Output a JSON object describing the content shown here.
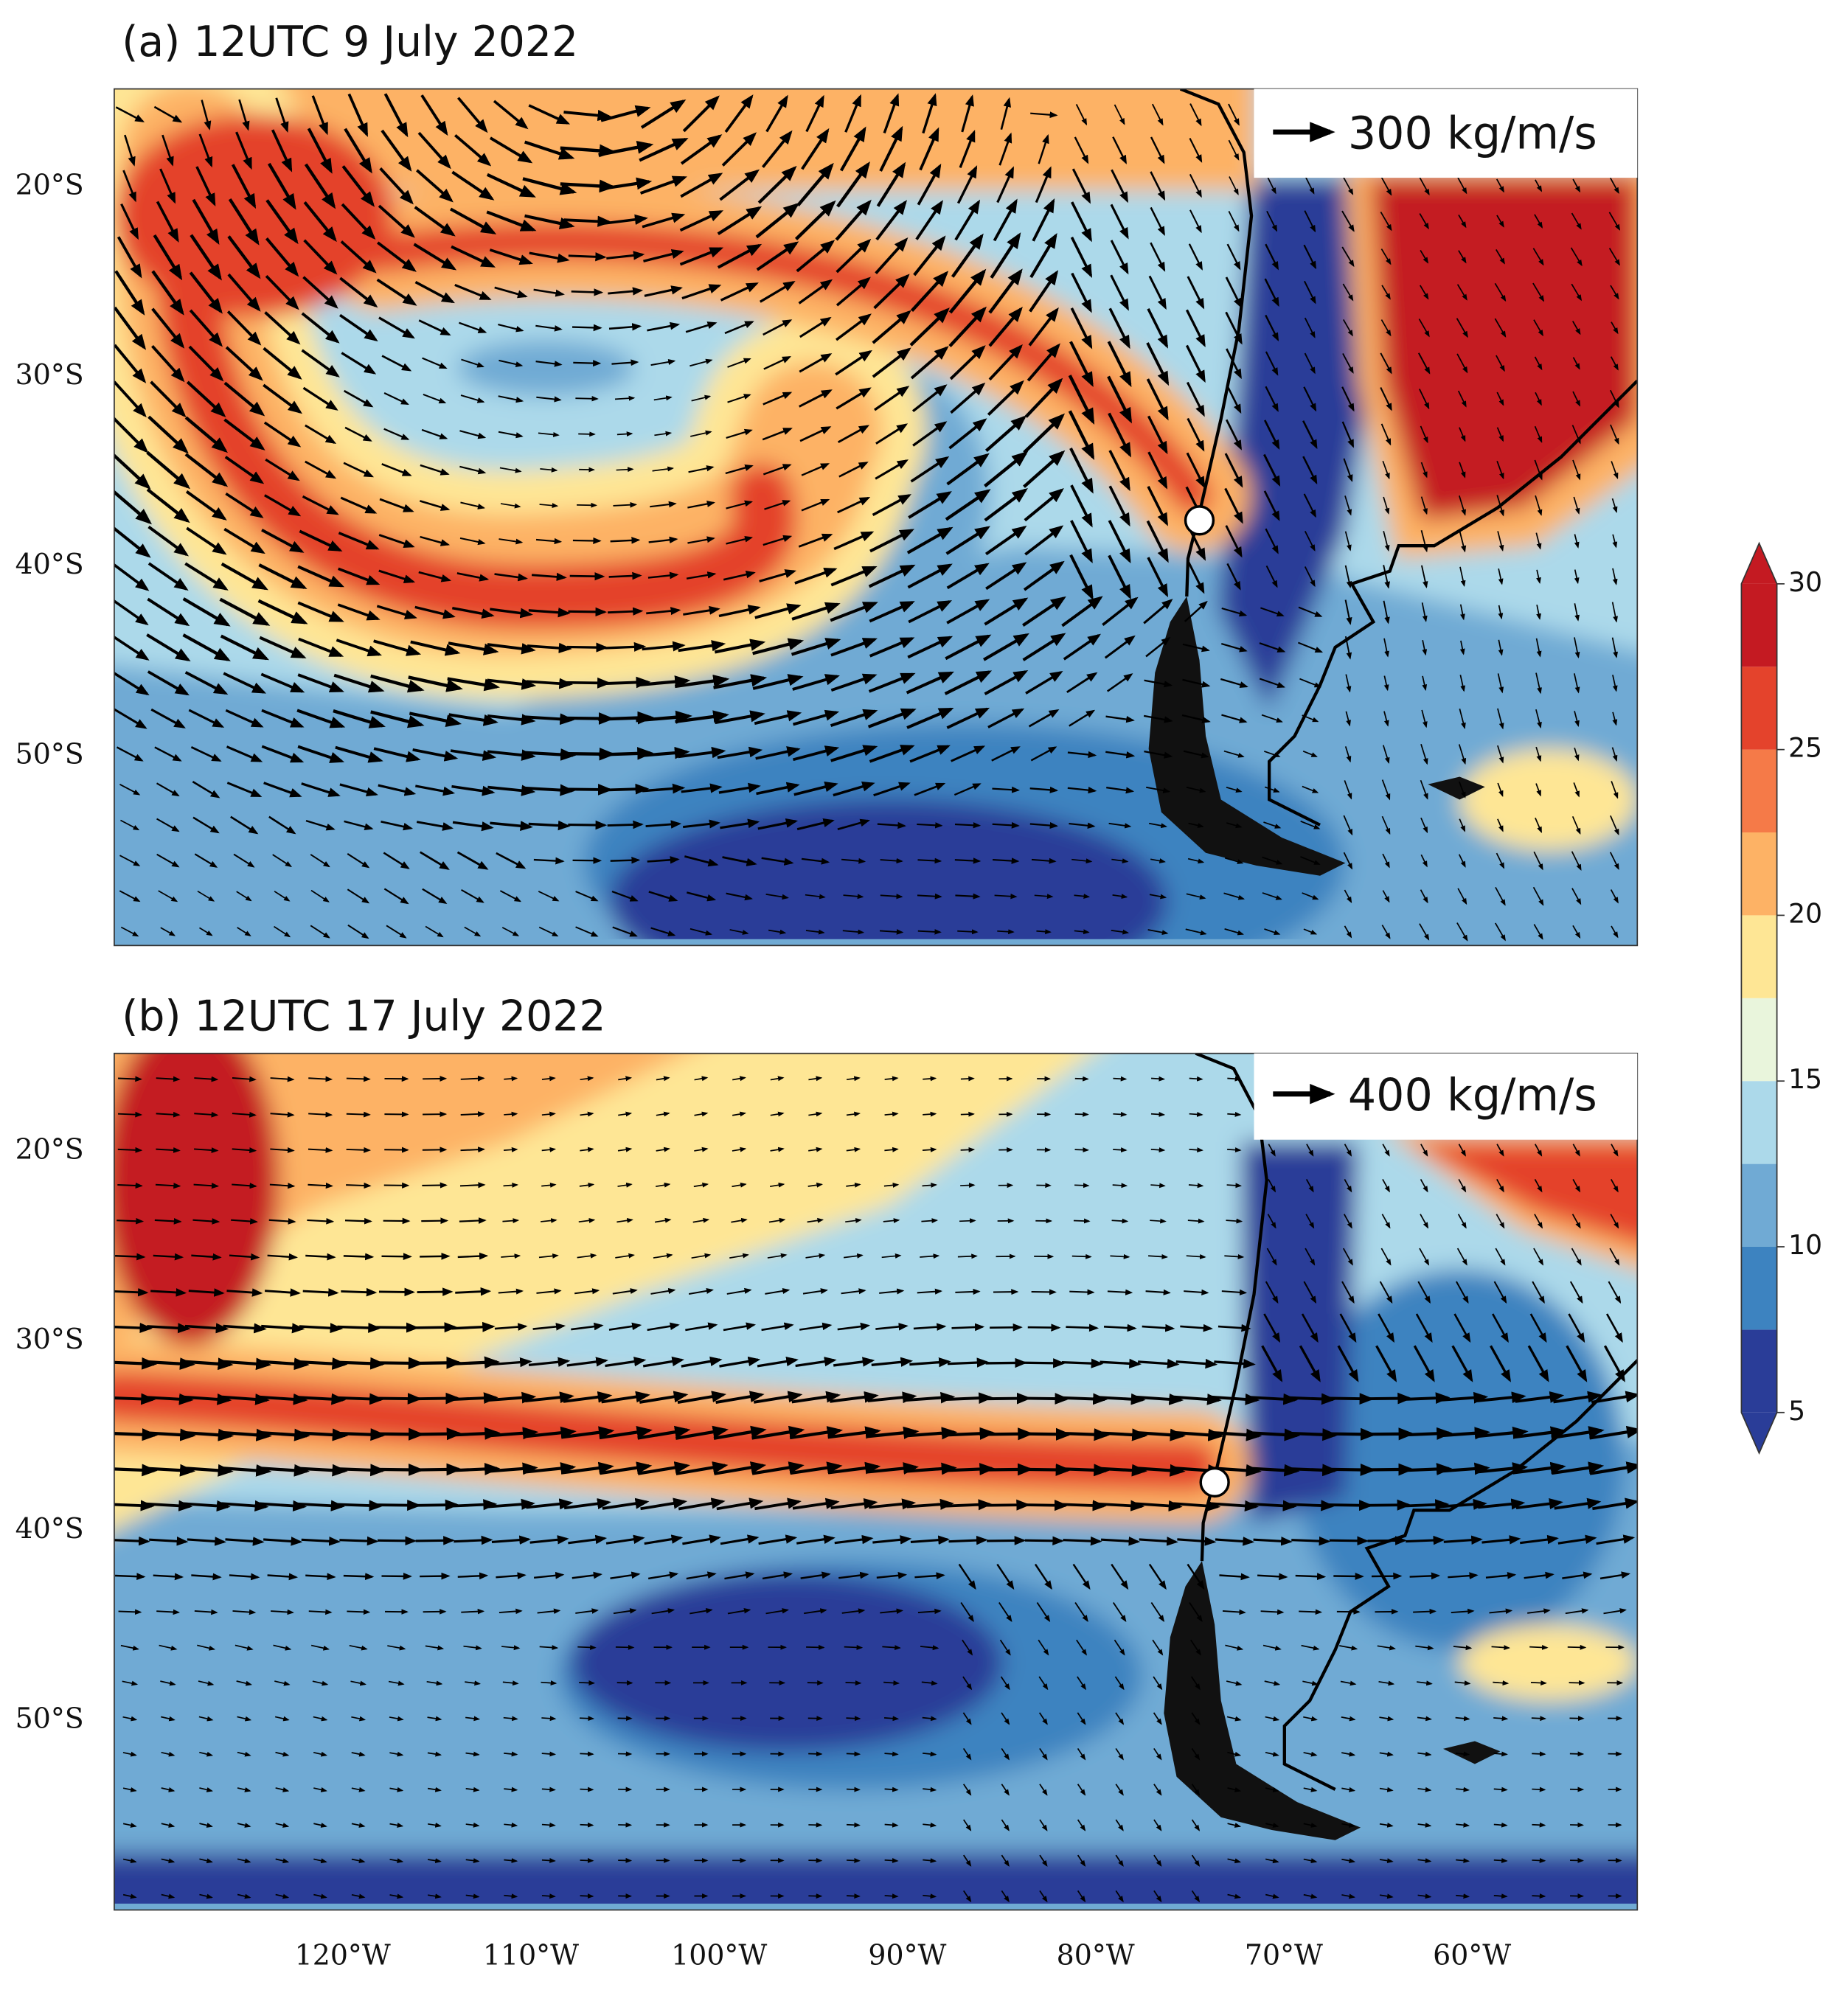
{
  "panels": [
    {
      "title": "(a) 12UTC 9 July 2022",
      "reference_arrow": "300 kg/m/s"
    },
    {
      "title": "(b) 12UTC 17 July 2022",
      "reference_arrow": "400 kg/m/s"
    }
  ],
  "latitude_labels": [
    "20°S",
    "30°S",
    "40°S",
    "50°S"
  ],
  "longitude_labels": [
    "120°W",
    "110°W",
    "100°W",
    "90°W",
    "80°W",
    "70°W",
    "60°W"
  ],
  "colorbar": {
    "levels": [
      5,
      7.5,
      10,
      12.5,
      15,
      17.5,
      20,
      22.5,
      25,
      27.5,
      30
    ],
    "ticks": [
      5,
      10,
      15,
      20,
      25,
      30
    ],
    "colors": [
      "#2a3d98",
      "#3d83c0",
      "#70aad4",
      "#acd9ea",
      "#e9f5dc",
      "#fee695",
      "#fdb265",
      "#f57a48",
      "#e4432c",
      "#c41a22"
    ],
    "under_color": "#2a3d98",
    "over_color": "#c41a22"
  }
}
